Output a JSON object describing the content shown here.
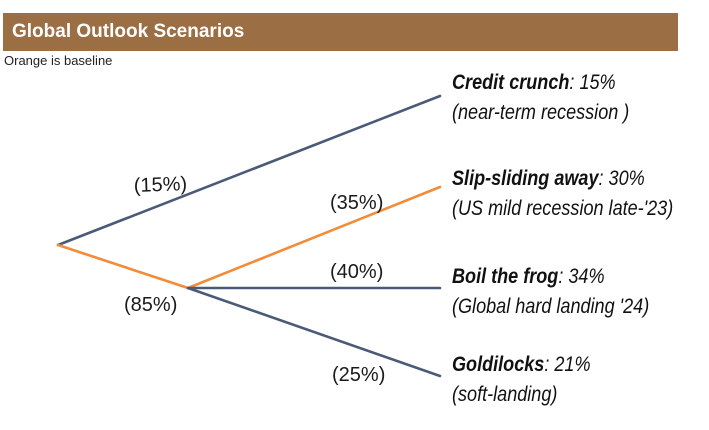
{
  "header": {
    "title": "Global Outlook Scenarios"
  },
  "subtitle": "Orange is baseline",
  "colors": {
    "header_bg": "#9b6e44",
    "baseline": "#f28c38",
    "branch": "#4b5a78"
  },
  "branch_labels": {
    "first_split_top": "(15%)",
    "first_split_bottom": "(85%)",
    "second_split_a": "(35%)",
    "second_split_b": "(40%)",
    "second_split_c": "(25%)"
  },
  "outcomes": [
    {
      "name": "Credit crunch",
      "pct": ": 15%",
      "desc": "(near-term recession )"
    },
    {
      "name": "Slip-sliding away",
      "pct": ": 30%",
      "desc": "(US mild recession late-'23)"
    },
    {
      "name": "Boil the frog",
      "pct": ": 34%",
      "desc": "(Global hard landing '24)"
    },
    {
      "name": "Goldilocks",
      "pct": ": 21%",
      "desc": "(soft-landing)"
    }
  ]
}
